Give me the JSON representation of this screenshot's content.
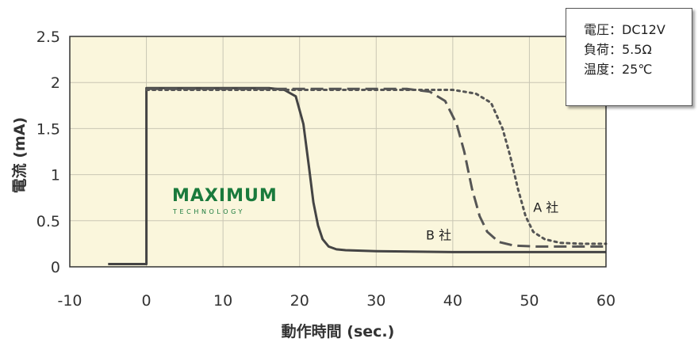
{
  "chart_data": {
    "type": "line",
    "xlabel": "動作時間 (sec.)",
    "ylabel": "電流 (mA)",
    "xlim": [
      -10,
      60
    ],
    "ylim": [
      0,
      2.5
    ],
    "x_ticks": [
      "-10",
      "0",
      "10",
      "20",
      "30",
      "40",
      "50",
      "60"
    ],
    "y_ticks": [
      "0",
      "0.5",
      "1",
      "1.5",
      "2",
      "2.5"
    ],
    "grid": true,
    "plot_background": "#faf6dc",
    "series": [
      {
        "name": "",
        "line_style": "solid",
        "color": "#444444",
        "x": [
          -5,
          0,
          0,
          16,
          18,
          19.5,
          20.5,
          21.2,
          21.8,
          22.4,
          23,
          23.8,
          24.8,
          26,
          30,
          40,
          50,
          60
        ],
        "y": [
          0.03,
          0.03,
          1.94,
          1.94,
          1.92,
          1.85,
          1.55,
          1.1,
          0.7,
          0.45,
          0.3,
          0.22,
          0.19,
          0.18,
          0.17,
          0.16,
          0.16,
          0.16
        ]
      },
      {
        "name": "",
        "line_style": "dashed",
        "color": "#555555",
        "x": [
          0,
          34,
          37,
          39,
          40.5,
          41.5,
          42.5,
          43.5,
          44.5,
          46,
          48,
          51,
          60
        ],
        "y": [
          1.93,
          1.93,
          1.9,
          1.8,
          1.55,
          1.25,
          0.85,
          0.55,
          0.38,
          0.27,
          0.23,
          0.22,
          0.22
        ]
      },
      {
        "name": "",
        "line_style": "dotted",
        "color": "#555555",
        "x": [
          0,
          40,
          43,
          45,
          46.5,
          47.5,
          48.5,
          49.5,
          50.5,
          52,
          54,
          57,
          60
        ],
        "y": [
          1.92,
          1.92,
          1.88,
          1.78,
          1.5,
          1.2,
          0.85,
          0.55,
          0.38,
          0.3,
          0.26,
          0.25,
          0.25
        ]
      }
    ],
    "annotations": [
      {
        "text": "A 社",
        "x": 50.5,
        "y": 0.65
      },
      {
        "text": "B 社",
        "x": 36.5,
        "y": 0.35
      }
    ],
    "legend": "none",
    "conditions_box": {
      "placement": "top-right",
      "rows": [
        "電圧：DC12V",
        "負荷：5.5Ω",
        "温度：25℃"
      ]
    }
  },
  "logo": {
    "main": "MAXIMUM",
    "sub": "TECHNOLOGY",
    "color": "#1a7a3c"
  }
}
